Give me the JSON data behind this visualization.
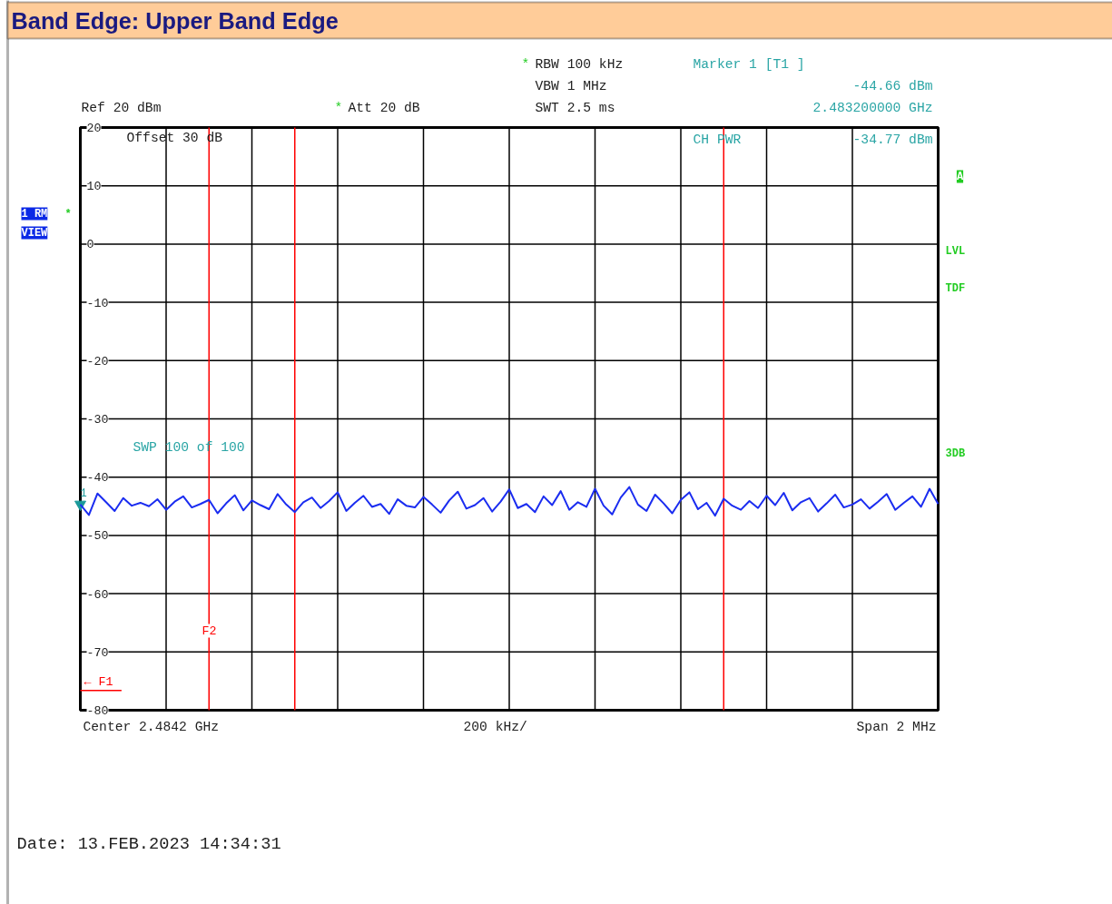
{
  "chart_data": {
    "type": "line",
    "title": "Band Edge: Upper Band Edge",
    "categories": [
      null,
      null,
      null,
      null,
      null,
      null,
      null,
      null,
      null,
      null,
      null,
      null,
      null,
      null,
      null,
      null,
      null,
      null,
      null,
      null,
      null,
      null,
      null,
      null,
      null,
      null,
      null,
      null,
      null,
      null,
      null,
      null,
      null,
      null,
      null,
      null,
      null,
      null,
      null,
      null,
      null,
      null,
      null,
      null,
      null,
      null,
      null,
      null,
      null,
      null,
      null,
      null,
      null,
      null,
      null,
      null,
      null,
      null,
      null,
      null,
      null,
      null,
      null,
      null,
      null,
      null,
      null,
      null,
      null,
      null,
      null,
      null,
      null,
      null,
      null,
      null,
      null,
      null,
      null,
      null,
      null,
      null,
      null,
      null,
      null,
      null,
      null,
      null,
      null,
      null,
      null,
      null,
      null,
      null,
      null,
      null,
      null,
      null,
      null,
      null,
      null
    ],
    "series": [
      {
        "color": "#1a2cf0",
        "values": [
          -44.7,
          -46.5,
          -42.8,
          -44.3,
          -45.8,
          -43.6,
          -44.9,
          -44.4,
          -45.0,
          -43.8,
          -45.6,
          -44.2,
          -43.3,
          -45.2,
          -44.6,
          -43.9,
          -46.2,
          -44.5,
          -43.1,
          -45.7,
          -44.0,
          -44.8,
          -45.5,
          -42.9,
          -44.7,
          -46.0,
          -44.3,
          -43.5,
          -45.3,
          -44.1,
          -42.6,
          -45.8,
          -44.4,
          -43.2,
          -45.1,
          -44.6,
          -46.3,
          -43.8,
          -44.9,
          -45.2,
          -43.4,
          -44.7,
          -46.1,
          -44.0,
          -42.5,
          -45.4,
          -44.8,
          -43.6,
          -45.9,
          -44.2,
          -42.1,
          -45.3,
          -44.6,
          -46.0,
          -43.3,
          -44.8,
          -42.4,
          -45.6,
          -44.3,
          -45.1,
          -42.0,
          -44.9,
          -46.4,
          -43.5,
          -41.7,
          -44.7,
          -45.8,
          -43.0,
          -44.5,
          -46.2,
          -43.9,
          -42.6,
          -45.5,
          -44.4,
          -46.6,
          -43.7,
          -44.9,
          -45.6,
          -44.1,
          -45.3,
          -43.2,
          -44.8,
          -42.7,
          -45.7,
          -44.3,
          -43.6,
          -45.9,
          -44.5,
          -43.0,
          -45.2,
          -44.7,
          -43.8,
          -45.4,
          -44.2,
          -42.9,
          -45.6,
          -44.4,
          -43.3,
          -45.1,
          -42.0,
          -44.6
        ]
      }
    ],
    "ylim": [
      -80,
      20
    ],
    "yticks": [
      -80,
      -70,
      -60,
      -50,
      -40,
      -30,
      -20,
      -10,
      0,
      10,
      20
    ],
    "grid": true,
    "tick_labels": "y",
    "ref_lines": [
      {
        "axis": "y",
        "value": -76.6,
        "label": "← F1",
        "color": "#ff0000"
      }
    ],
    "annotations": [
      "Marker 1 [T1 ]",
      "-44.66 dBm",
      "2.483200000 GHz",
      "*",
      "RBW 100 kHz",
      "VBW 1 MHz",
      "SWT 2.5 ms",
      "Ref 20 dBm",
      "*",
      "Att 20 dB",
      "Offset 30 dB",
      "CH PWR",
      "-34.77 dBm",
      "A",
      "1 RM",
      "*",
      "VIEW",
      "LVL",
      "TDF",
      "3DB",
      "SWP 100 of 100",
      "Center 2.4842 GHz",
      "200 kHz/",
      "Span 2 MHz",
      "Date: 13.FEB.2023 14:34:31",
      "F2",
      {
        "text": "1",
        "y": -44.66
      }
    ]
  }
}
